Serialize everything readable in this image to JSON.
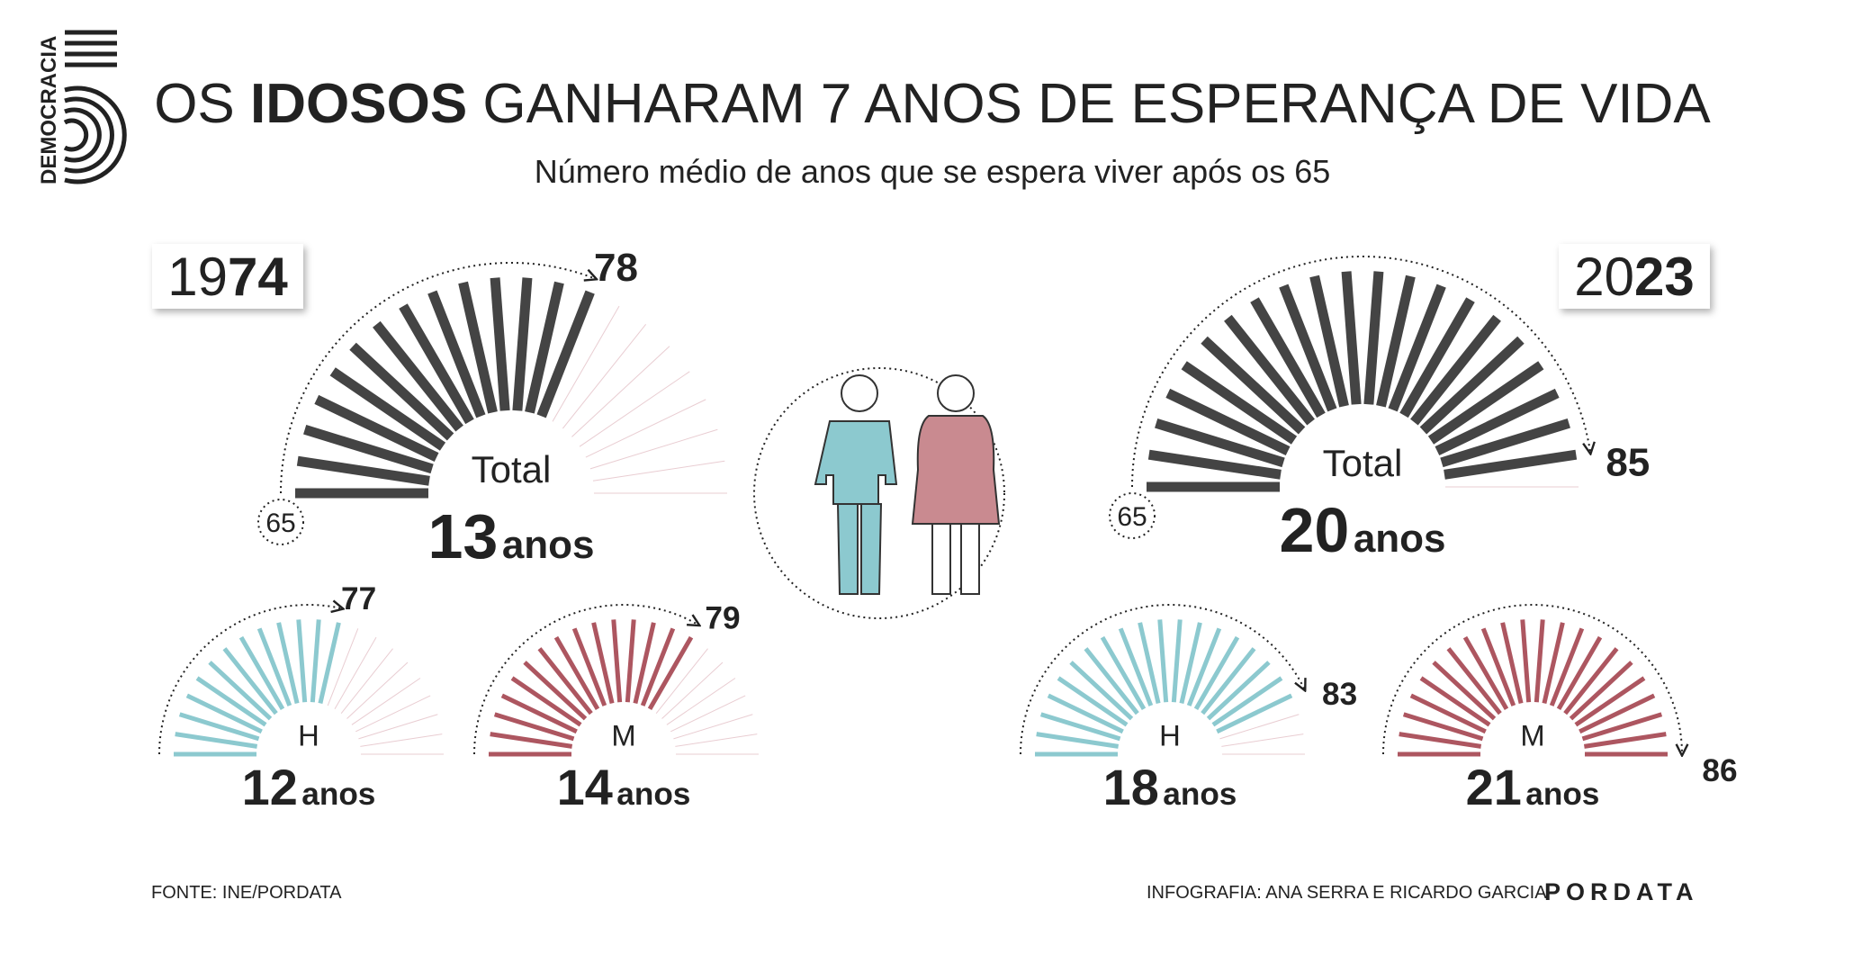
{
  "logo": "DEMOCRACIA",
  "header": {
    "title_pre": "OS",
    "title_bold": "IDOSOS",
    "title_post": "GANHARAM 7 ANOS DE ESPERANÇA DE VIDA",
    "subtitle": "Número médio de anos que se espera viver após os 65"
  },
  "panels": [
    {
      "year_pre": "19",
      "year_bold": "74",
      "start_age": 65,
      "gauges": [
        {
          "label": "Total",
          "years": 13,
          "unit": "anos",
          "end_age": 78,
          "color": "#444444"
        },
        {
          "label": "H",
          "years": 12,
          "unit": "anos",
          "end_age": 77,
          "color": "#8cc9cf"
        },
        {
          "label": "M",
          "years": 14,
          "unit": "anos",
          "end_age": 79,
          "color": "#ad5660"
        }
      ]
    },
    {
      "year_pre": "20",
      "year_bold": "23",
      "start_age": 65,
      "gauges": [
        {
          "label": "Total",
          "years": 20,
          "unit": "anos",
          "end_age": 85,
          "color": "#444444"
        },
        {
          "label": "H",
          "years": 18,
          "unit": "anos",
          "end_age": 83,
          "color": "#8cc9cf"
        },
        {
          "label": "M",
          "years": 21,
          "unit": "anos",
          "end_age": 86,
          "color": "#ad5660"
        }
      ]
    }
  ],
  "footer": {
    "source": "FONTE: INE/PORDATA",
    "credit": "INFOGRAFIA: ANA SERRA E RICARDO GARCIA",
    "brand": "PORDATA"
  }
}
